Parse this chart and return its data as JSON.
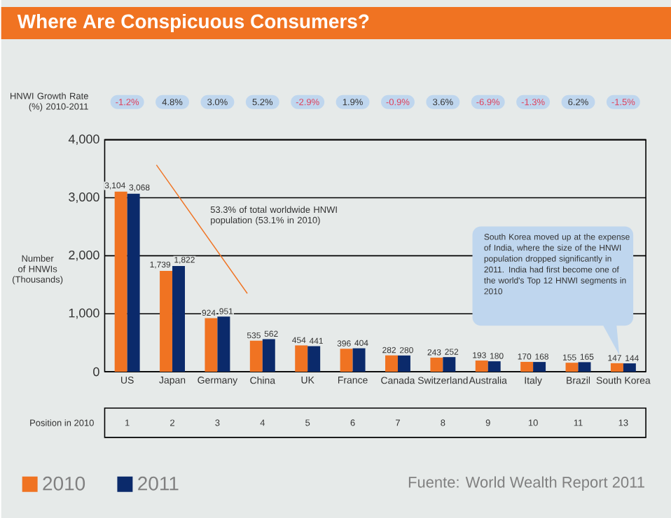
{
  "chart_data": {
    "type": "bar",
    "title": "Where Are Conspicuous Consumers?",
    "ylabel": "Number of HNWIs (Thousands)",
    "categories": [
      "US",
      "Japan",
      "Germany",
      "China",
      "UK",
      "France",
      "Canada",
      "Switzerland",
      "Australia",
      "Italy",
      "Brazil",
      "South Korea"
    ],
    "series": [
      {
        "name": "2010",
        "color": "#f07322",
        "values": [
          3104,
          1739,
          924,
          535,
          454,
          396,
          282,
          243,
          193,
          170,
          155,
          147
        ],
        "value_labels": [
          "3,104",
          "1,739",
          "924",
          "535",
          "454",
          "396",
          "282",
          "243",
          "193",
          "170",
          "155",
          "147"
        ]
      },
      {
        "name": "2011",
        "color": "#0b2a6b",
        "values": [
          3068,
          1822,
          951,
          562,
          441,
          404,
          280,
          252,
          180,
          168,
          165,
          144
        ],
        "value_labels": [
          "3,068",
          "1,822",
          "951",
          "562",
          "441",
          "404",
          "280",
          "252",
          "180",
          "168",
          "165",
          "144"
        ]
      }
    ],
    "ylim": [
      0,
      4000
    ],
    "yticks": [
      0,
      {
        "value": 1000,
        "label": "1,000"
      },
      {
        "value": 2000,
        "label": "2,000"
      },
      {
        "value": 3000,
        "label": "3,000"
      },
      {
        "value": 4000,
        "label": "4,000"
      }
    ],
    "grid": "y",
    "legend": "bottom left",
    "annotations": [
      "HNWI Growth Rate (%) 2010-2011",
      "-1.2%",
      "4.8%",
      "3.0%",
      "5.2%",
      "-2.9%",
      "1.9%",
      "-0.9%",
      "3.6%",
      "-6.9%",
      "-1.3%",
      "6.2%",
      "-1.5%",
      "Position in 2010",
      "1",
      "2",
      "3",
      "4",
      "5",
      "6",
      "7",
      "8",
      "9",
      "10",
      "11",
      "13",
      "53.3% of total worldwide HNWI population (53.1% in 2010)",
      "South Korea moved up at the expense of India, where the size of the HNWI population dropped significantly in 2011. India had first become one of the world's Top 12 HNWI segments in 2010",
      "Fuente: World Wealth Report 2011"
    ]
  }
}
